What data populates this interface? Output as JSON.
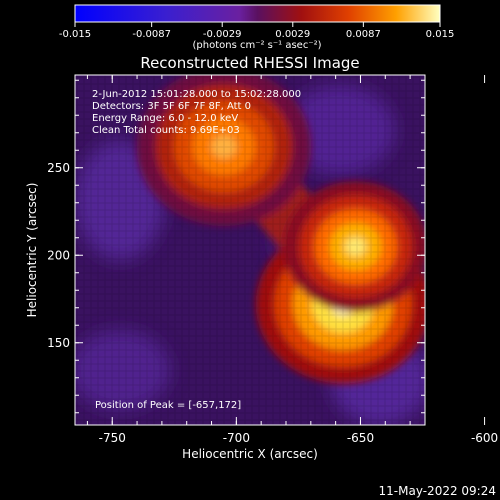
{
  "colorbar": {
    "ticks": [
      "-0.015",
      "-0.0087",
      "-0.0029",
      "0.0029",
      "0.0087",
      "0.015"
    ],
    "tick_values": [
      -0.015,
      -0.0087,
      -0.0029,
      0.0029,
      0.0087,
      0.015
    ],
    "range": [
      -0.015,
      0.015
    ],
    "units": "(photons cm⁻² s⁻¹ asec⁻²)"
  },
  "chart_data": {
    "type": "heatmap",
    "title": "Reconstructed RHESSI Image",
    "xlabel": "Heliocentric X (arcsec)",
    "ylabel": "Heliocentric Y (arcsec)",
    "xlim": [
      -765,
      -624
    ],
    "ylim": [
      103,
      303
    ],
    "xticks": [
      "-750",
      "-700",
      "-650",
      "-600"
    ],
    "xtick_values": [
      -750,
      -700,
      -650,
      -600
    ],
    "yticks": [
      "150",
      "200",
      "250"
    ],
    "ytick_values": [
      150,
      200,
      250
    ],
    "sources": [
      {
        "x": -657,
        "y": 172,
        "peak": 0.015
      },
      {
        "x": -652,
        "y": 205,
        "peak": 0.0125
      },
      {
        "x": -705,
        "y": 262,
        "peak": 0.0085
      }
    ],
    "annotations": [
      "2-Jun-2012 15:01:28.000 to 15:02:28.000",
      "Detectors: 3F 5F 6F 7F 8F, Att 0",
      "Energy Range: 6.0 - 12.0 keV",
      "Clean    Total counts: 9.69E+03"
    ],
    "peak_label": "Position of Peak = [-657,172]"
  },
  "timestamp": "11-May-2022 09:24",
  "colors": {
    "axis": "#ffffff",
    "background": "#000000"
  }
}
